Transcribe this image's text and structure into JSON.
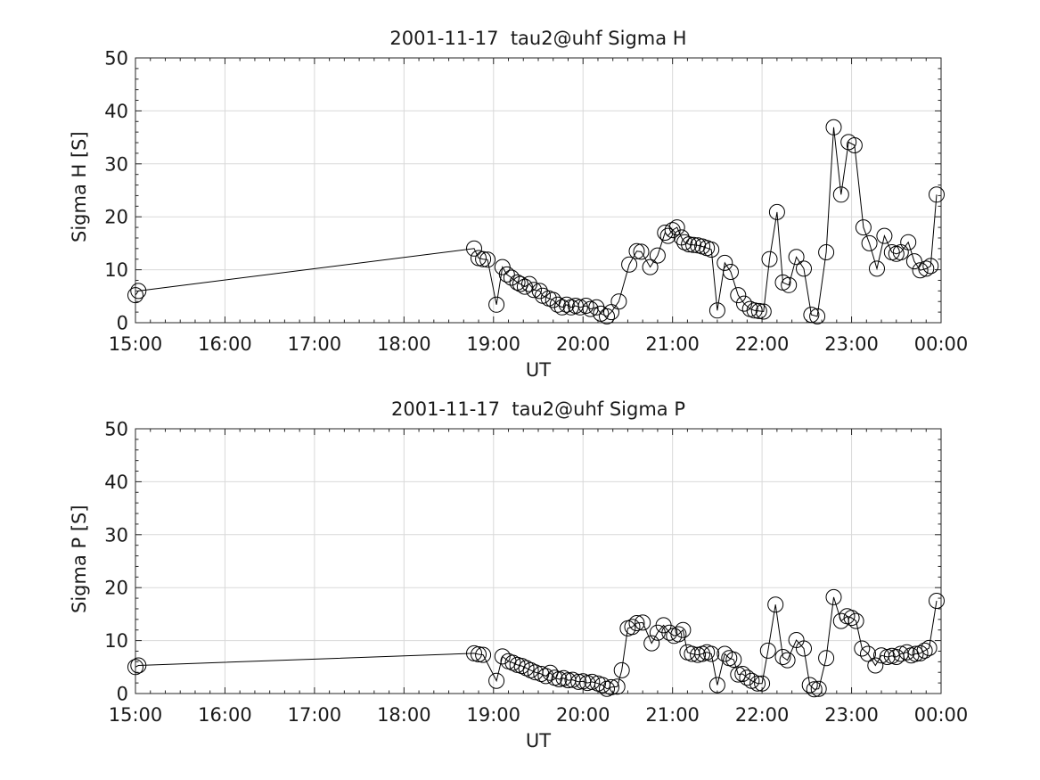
{
  "figure": {
    "background": "#ffffff",
    "text_color": "#1a1a1a",
    "axis_color": "#262626",
    "grid_color": "#d9d9d9",
    "line_color": "#000000"
  },
  "chart_data": [
    {
      "type": "line",
      "title": "2001-11-17  tau2@uhf Sigma H",
      "xlabel": "UT",
      "ylabel": "Sigma H [S]",
      "marker": "open-circle",
      "grid": true,
      "legend": "none",
      "x_tick_labels": [
        "15:00",
        "16:00",
        "17:00",
        "18:00",
        "19:00",
        "20:00",
        "21:00",
        "22:00",
        "23:00",
        "00:00"
      ],
      "x_tick_minutes": [
        900,
        960,
        1020,
        1080,
        1140,
        1200,
        1260,
        1320,
        1380,
        1440
      ],
      "y_ticks": [
        0,
        10,
        20,
        30,
        40,
        50
      ],
      "xlim_minutes": [
        900,
        1440
      ],
      "ylim": [
        0,
        50
      ],
      "points_minutes_value": [
        [
          900,
          5.2
        ],
        [
          902,
          6.0
        ],
        [
          1127,
          14.0
        ],
        [
          1130,
          12.2
        ],
        [
          1133,
          12.0
        ],
        [
          1136,
          11.9
        ],
        [
          1142,
          3.4
        ],
        [
          1146,
          10.5
        ],
        [
          1149,
          9.1
        ],
        [
          1152,
          8.5
        ],
        [
          1156,
          7.6
        ],
        [
          1158,
          7.3
        ],
        [
          1161,
          6.8
        ],
        [
          1164,
          7.3
        ],
        [
          1167,
          6.2
        ],
        [
          1171,
          6.0
        ],
        [
          1173,
          5.1
        ],
        [
          1177,
          4.6
        ],
        [
          1180,
          4.3
        ],
        [
          1183,
          3.4
        ],
        [
          1186,
          2.9
        ],
        [
          1189,
          3.4
        ],
        [
          1192,
          2.9
        ],
        [
          1195,
          3.2
        ],
        [
          1198,
          2.9
        ],
        [
          1202,
          3.2
        ],
        [
          1205,
          2.6
        ],
        [
          1209,
          2.9
        ],
        [
          1212,
          1.7
        ],
        [
          1216,
          1.2
        ],
        [
          1219,
          2.0
        ],
        [
          1224,
          4.0
        ],
        [
          1231,
          11.0
        ],
        [
          1236,
          13.5
        ],
        [
          1239,
          13.4
        ],
        [
          1245,
          10.5
        ],
        [
          1250,
          12.7
        ],
        [
          1255,
          17.0
        ],
        [
          1257,
          16.4
        ],
        [
          1260,
          17.5
        ],
        [
          1263,
          18.0
        ],
        [
          1266,
          16.1
        ],
        [
          1268,
          15.2
        ],
        [
          1271,
          14.8
        ],
        [
          1274,
          14.7
        ],
        [
          1277,
          14.6
        ],
        [
          1280,
          14.4
        ],
        [
          1283,
          14.1
        ],
        [
          1286,
          13.8
        ],
        [
          1290,
          2.3
        ],
        [
          1295,
          11.3
        ],
        [
          1299,
          9.6
        ],
        [
          1304,
          5.2
        ],
        [
          1308,
          3.6
        ],
        [
          1312,
          2.6
        ],
        [
          1315,
          2.3
        ],
        [
          1318,
          2.2
        ],
        [
          1321,
          2.1
        ],
        [
          1325,
          12.0
        ],
        [
          1330,
          20.9
        ],
        [
          1334,
          7.6
        ],
        [
          1338,
          7.1
        ],
        [
          1343,
          12.4
        ],
        [
          1348,
          10.2
        ],
        [
          1353,
          1.5
        ],
        [
          1357,
          1.2
        ],
        [
          1363,
          13.3
        ],
        [
          1368,
          36.9
        ],
        [
          1373,
          24.2
        ],
        [
          1378,
          34.1
        ],
        [
          1382,
          33.5
        ],
        [
          1388,
          18.0
        ],
        [
          1392,
          15.0
        ],
        [
          1397,
          10.2
        ],
        [
          1402,
          16.4
        ],
        [
          1407,
          13.3
        ],
        [
          1410,
          13.0
        ],
        [
          1413,
          13.3
        ],
        [
          1418,
          15.2
        ],
        [
          1422,
          11.6
        ],
        [
          1426,
          9.9
        ],
        [
          1430,
          10.2
        ],
        [
          1433,
          10.7
        ],
        [
          1437,
          24.2
        ]
      ]
    },
    {
      "type": "line",
      "title": "2001-11-17  tau2@uhf Sigma P",
      "xlabel": "UT",
      "ylabel": "Sigma P [S]",
      "marker": "open-circle",
      "grid": true,
      "legend": "none",
      "x_tick_labels": [
        "15:00",
        "16:00",
        "17:00",
        "18:00",
        "19:00",
        "20:00",
        "21:00",
        "22:00",
        "23:00",
        "00:00"
      ],
      "x_tick_minutes": [
        900,
        960,
        1020,
        1080,
        1140,
        1200,
        1260,
        1320,
        1380,
        1440
      ],
      "y_ticks": [
        0,
        10,
        20,
        30,
        40,
        50
      ],
      "xlim_minutes": [
        900,
        1440
      ],
      "ylim": [
        0,
        50
      ],
      "points_minutes_value": [
        [
          900,
          5.0
        ],
        [
          902,
          5.3
        ],
        [
          1127,
          7.6
        ],
        [
          1130,
          7.4
        ],
        [
          1133,
          7.3
        ],
        [
          1142,
          2.4
        ],
        [
          1146,
          7.0
        ],
        [
          1150,
          6.1
        ],
        [
          1153,
          5.8
        ],
        [
          1156,
          5.4
        ],
        [
          1159,
          5.2
        ],
        [
          1162,
          4.8
        ],
        [
          1165,
          4.4
        ],
        [
          1168,
          4.0
        ],
        [
          1172,
          3.7
        ],
        [
          1175,
          3.3
        ],
        [
          1178,
          3.9
        ],
        [
          1181,
          3.0
        ],
        [
          1184,
          2.7
        ],
        [
          1187,
          2.9
        ],
        [
          1190,
          2.5
        ],
        [
          1193,
          2.6
        ],
        [
          1197,
          2.2
        ],
        [
          1200,
          2.3
        ],
        [
          1203,
          2.0
        ],
        [
          1206,
          2.2
        ],
        [
          1210,
          1.9
        ],
        [
          1213,
          1.6
        ],
        [
          1216,
          0.9
        ],
        [
          1219,
          1.2
        ],
        [
          1223,
          1.3
        ],
        [
          1226,
          4.4
        ],
        [
          1230,
          12.3
        ],
        [
          1233,
          12.6
        ],
        [
          1236,
          13.3
        ],
        [
          1240,
          13.4
        ],
        [
          1246,
          9.5
        ],
        [
          1250,
          11.5
        ],
        [
          1254,
          12.9
        ],
        [
          1258,
          11.5
        ],
        [
          1261,
          10.9
        ],
        [
          1264,
          11.2
        ],
        [
          1267,
          12.0
        ],
        [
          1270,
          7.8
        ],
        [
          1273,
          7.5
        ],
        [
          1277,
          7.3
        ],
        [
          1280,
          7.5
        ],
        [
          1283,
          7.8
        ],
        [
          1286,
          7.5
        ],
        [
          1290,
          1.6
        ],
        [
          1295,
          7.5
        ],
        [
          1298,
          6.7
        ],
        [
          1301,
          6.4
        ],
        [
          1304,
          3.6
        ],
        [
          1307,
          3.7
        ],
        [
          1310,
          3.0
        ],
        [
          1313,
          2.4
        ],
        [
          1317,
          1.9
        ],
        [
          1320,
          1.9
        ],
        [
          1324,
          8.1
        ],
        [
          1329,
          16.8
        ],
        [
          1334,
          6.9
        ],
        [
          1337,
          6.3
        ],
        [
          1343,
          10.1
        ],
        [
          1348,
          8.5
        ],
        [
          1352,
          1.6
        ],
        [
          1355,
          0.8
        ],
        [
          1358,
          0.9
        ],
        [
          1363,
          6.7
        ],
        [
          1368,
          18.2
        ],
        [
          1373,
          13.7
        ],
        [
          1377,
          14.6
        ],
        [
          1380,
          14.3
        ],
        [
          1383,
          13.7
        ],
        [
          1387,
          8.5
        ],
        [
          1391,
          7.5
        ],
        [
          1396,
          5.3
        ],
        [
          1400,
          7.2
        ],
        [
          1404,
          6.9
        ],
        [
          1407,
          7.1
        ],
        [
          1410,
          6.9
        ],
        [
          1413,
          7.5
        ],
        [
          1417,
          7.8
        ],
        [
          1420,
          7.2
        ],
        [
          1423,
          7.5
        ],
        [
          1426,
          7.6
        ],
        [
          1429,
          8.1
        ],
        [
          1432,
          8.6
        ],
        [
          1437,
          17.5
        ]
      ]
    }
  ]
}
